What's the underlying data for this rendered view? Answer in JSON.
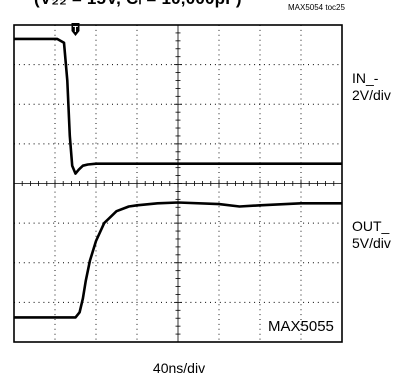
{
  "title": "(V₂₂ = 15V, Cₗ = 10,000pF)",
  "figure_id": "MAX5054 toc25",
  "part_label": "MAX5055",
  "time_scale": "40ns/div",
  "channels": [
    {
      "name": "IN_-",
      "scale": "2V/div"
    },
    {
      "name": "OUT_",
      "scale": "5V/div"
    }
  ],
  "chart_data": {
    "type": "line",
    "title": "(V₂₂ = 15V, Cₗ = 10,000pF)",
    "xlabel": "40ns/div",
    "x_divisions": 8,
    "y_divisions": 8,
    "x_units": "divisions",
    "y_units": "divisions",
    "trigger_marker": "T",
    "trigger_x_div": 1.5,
    "grid": true,
    "series": [
      {
        "name": "IN_-",
        "scale": "2V/div",
        "x": [
          0,
          1.05,
          1.22,
          1.3,
          1.36,
          1.42,
          1.5,
          1.58,
          1.68,
          1.8,
          2.0,
          2.5,
          3,
          4,
          5,
          6,
          7,
          8
        ],
        "y": [
          7.65,
          7.65,
          7.55,
          6.6,
          5.2,
          4.45,
          4.25,
          4.35,
          4.45,
          4.48,
          4.5,
          4.5,
          4.5,
          4.5,
          4.5,
          4.5,
          4.5,
          4.5
        ]
      },
      {
        "name": "OUT_",
        "scale": "5V/div",
        "x": [
          0,
          1.5,
          1.6,
          1.68,
          1.75,
          1.85,
          2.0,
          2.2,
          2.5,
          2.8,
          3,
          3.5,
          4,
          5,
          5.5,
          6,
          7,
          8
        ],
        "y": [
          0.62,
          0.62,
          0.75,
          1.1,
          1.55,
          2.05,
          2.55,
          3.0,
          3.3,
          3.42,
          3.45,
          3.5,
          3.52,
          3.48,
          3.42,
          3.45,
          3.5,
          3.5
        ]
      }
    ]
  }
}
